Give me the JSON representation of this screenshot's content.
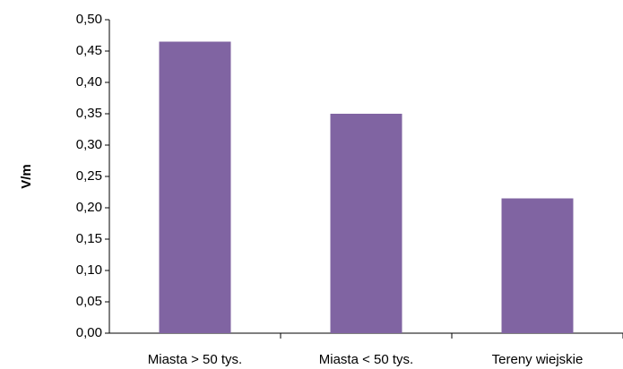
{
  "chart_data": {
    "type": "bar",
    "y_label": "V/m",
    "categories": [
      "Miasta > 50 tys.",
      "Miasta < 50 tys.",
      "Tereny wiejskie"
    ],
    "values": [
      0.465,
      0.35,
      0.215
    ],
    "color": "#8064a2",
    "ylim": [
      0,
      0.5
    ],
    "yticks": [
      {
        "value": 0,
        "label": "0,00"
      },
      {
        "value": 0.05,
        "label": "0,05"
      },
      {
        "value": 0.1,
        "label": "0,10"
      },
      {
        "value": 0.15,
        "label": "0,15"
      },
      {
        "value": 0.2,
        "label": "0,20"
      },
      {
        "value": 0.25,
        "label": "0,25"
      },
      {
        "value": 0.3,
        "label": "0,30"
      },
      {
        "value": 0.35,
        "label": "0,35"
      },
      {
        "value": 0.4,
        "label": "0,40"
      },
      {
        "value": 0.45,
        "label": "0,45"
      },
      {
        "value": 0.5,
        "label": "0,50"
      }
    ],
    "grid": false
  }
}
